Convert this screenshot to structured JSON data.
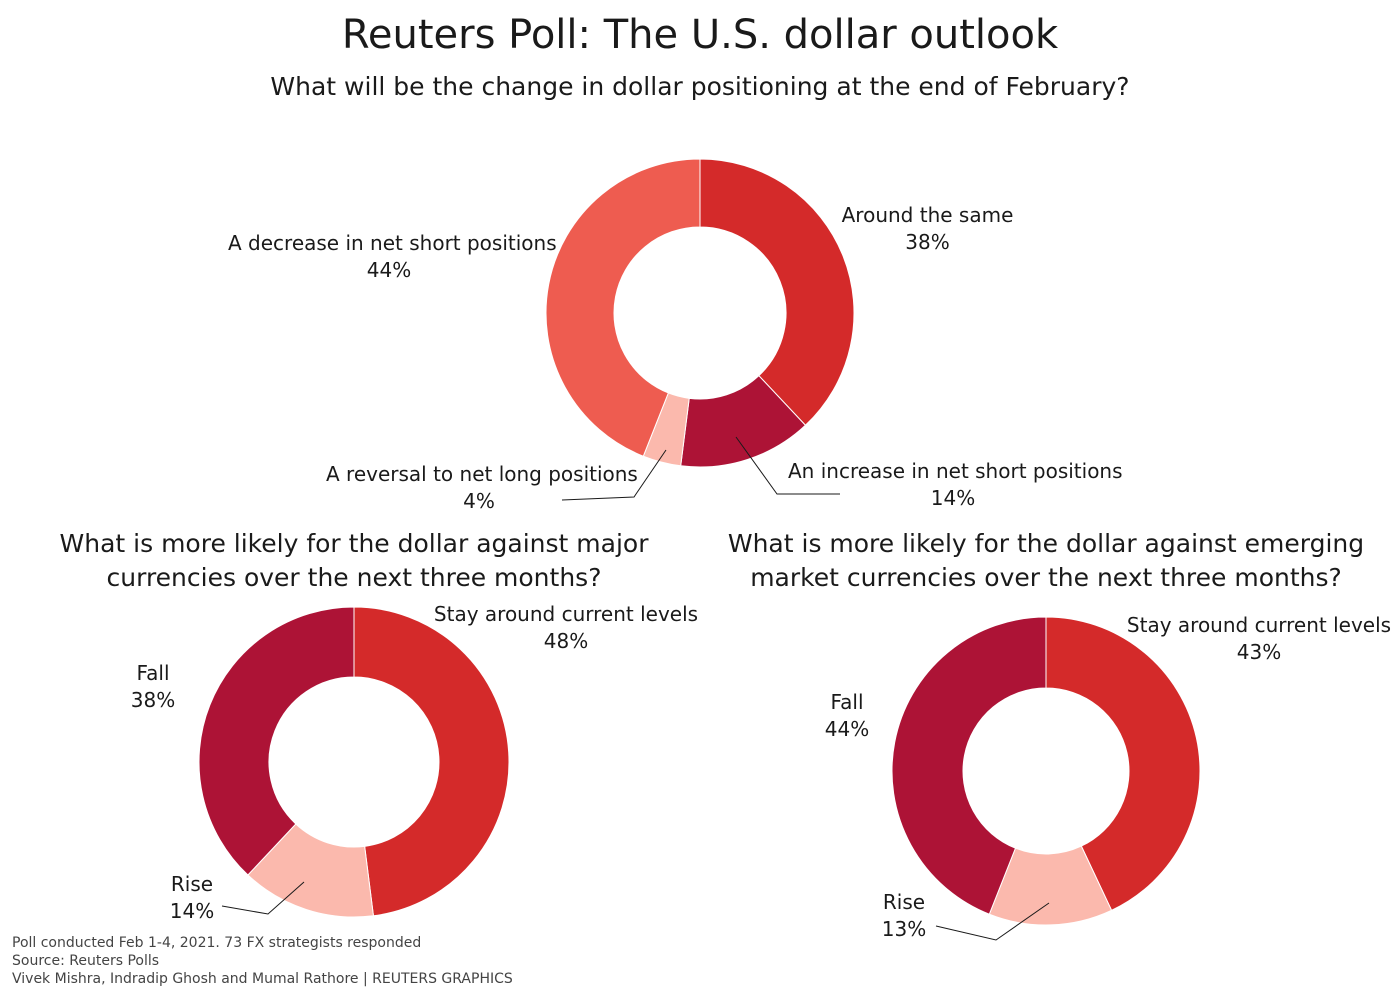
{
  "title": "Reuters Poll: The U.S. dollar outlook",
  "colors": {
    "red": "#d42a2a",
    "dark_red": "#ad1336",
    "pink": "#fbb9ad",
    "coral": "#ee5c50"
  },
  "chart_data": [
    {
      "type": "pie",
      "donut": true,
      "title": "What will be the change in dollar positioning at the end of February?",
      "slices": [
        {
          "label": "Around the same",
          "value": 38,
          "value_label": "38%",
          "color": "#d42a2a"
        },
        {
          "label": "An increase in net short positions",
          "value": 14,
          "value_label": "14%",
          "color": "#ad1336"
        },
        {
          "label": "A reversal to net long positions",
          "value": 4,
          "value_label": "4%",
          "color": "#fbb9ad"
        },
        {
          "label": "A decrease in net short positions",
          "value": 44,
          "value_label": "44%",
          "color": "#ee5c50"
        }
      ]
    },
    {
      "type": "pie",
      "donut": true,
      "title": "What is more likely for the dollar against major currencies over the next three months?",
      "title_lines": [
        "What is more likely for the dollar against major",
        "currencies over the next three months?"
      ],
      "slices": [
        {
          "label": "Stay around current levels",
          "value": 48,
          "value_label": "48%",
          "color": "#d42a2a"
        },
        {
          "label": "Rise",
          "value": 14,
          "value_label": "14%",
          "color": "#fbb9ad"
        },
        {
          "label": "Fall",
          "value": 38,
          "value_label": "38%",
          "color": "#ad1336"
        }
      ]
    },
    {
      "type": "pie",
      "donut": true,
      "title": "What is more likely for the dollar against emerging market currencies over the next three months?",
      "title_lines": [
        "What is more likely for the dollar against emerging",
        "market currencies over the next three months?"
      ],
      "slices": [
        {
          "label": "Stay around current levels",
          "value": 43,
          "value_label": "43%",
          "color": "#d42a2a"
        },
        {
          "label": "Rise",
          "value": 13,
          "value_label": "13%",
          "color": "#fbb9ad"
        },
        {
          "label": "Fall",
          "value": 44,
          "value_label": "44%",
          "color": "#ad1336"
        }
      ]
    }
  ],
  "footer": {
    "note": "Poll conducted Feb 1-4, 2021. 73 FX strategists responded",
    "source": "Source: Reuters Polls",
    "credit": "Vivek Mishra, Indradip Ghosh and Mumal Rathore | REUTERS GRAPHICS"
  }
}
